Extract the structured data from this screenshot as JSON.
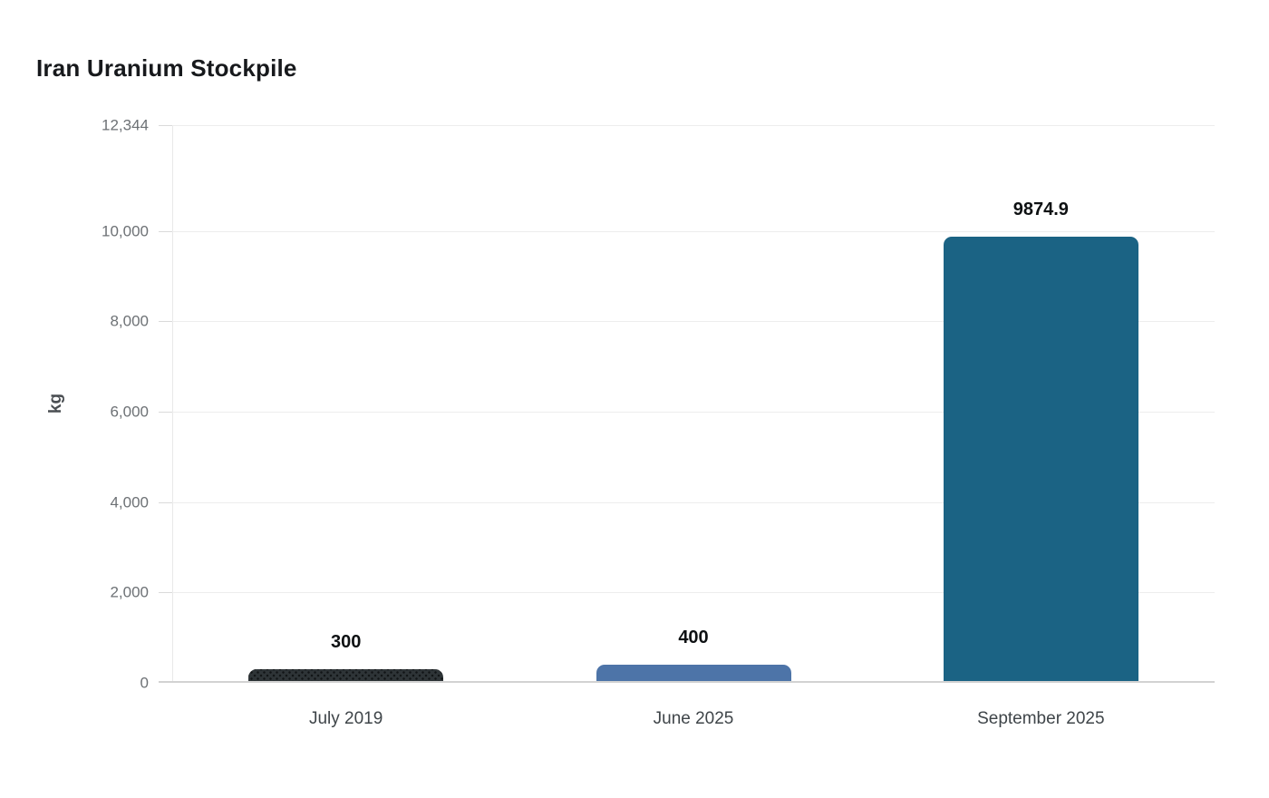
{
  "page": {
    "background": "#ffffff"
  },
  "chart_data": {
    "type": "bar",
    "title": "Iran Uranium Stockpile",
    "xlabel": "",
    "ylabel": "kg",
    "categories": [
      "July 2019",
      "June 2025",
      "September 2025"
    ],
    "values": [
      300,
      400,
      9874.9
    ],
    "value_labels": [
      "300",
      "400",
      "9874.9"
    ],
    "ylim": [
      0,
      12344
    ],
    "yticks": [
      0,
      2000,
      4000,
      6000,
      8000,
      10000,
      12344
    ],
    "ytick_labels": [
      "0",
      "2,000",
      "4,000",
      "6,000",
      "8,000",
      "10,000",
      "12,344"
    ],
    "grid": true,
    "legend_position": "none",
    "series": [
      {
        "name": "July 2019",
        "value": 300,
        "color": "#2e3437",
        "pattern": "dots"
      },
      {
        "name": "June 2025",
        "value": 400,
        "color": "#4d74a8",
        "pattern": "solid"
      },
      {
        "name": "September 2025",
        "value": 9874.9,
        "color": "#1b6384",
        "pattern": "solid"
      }
    ],
    "colors": {
      "title_text": "#17191c",
      "axis_label_text": "#4a4e52",
      "tick_text": "#6d7175",
      "category_text": "#3f4549",
      "value_label_text": "#0e1113",
      "gridline": "#ededed",
      "axis_line": "#d2d2d2"
    }
  }
}
